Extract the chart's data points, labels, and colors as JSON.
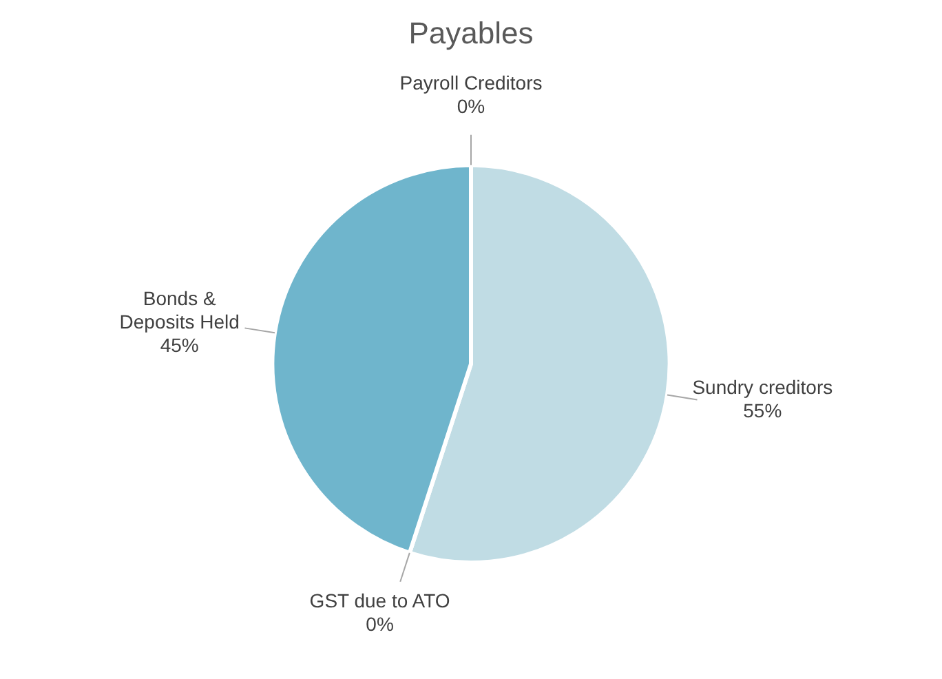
{
  "chart_data": {
    "type": "pie",
    "title": "Payables",
    "categories": [
      "Sundry creditors",
      "GST due to ATO",
      "Bonds & Deposits Held",
      "Payroll Creditors"
    ],
    "values": [
      55,
      0,
      45,
      0
    ],
    "colors": [
      "#c0dce4",
      "#4bacc6",
      "#6fb5cc",
      "#2e8fa8"
    ],
    "value_labels": [
      "55%",
      "0%",
      "45%",
      "0%"
    ]
  }
}
